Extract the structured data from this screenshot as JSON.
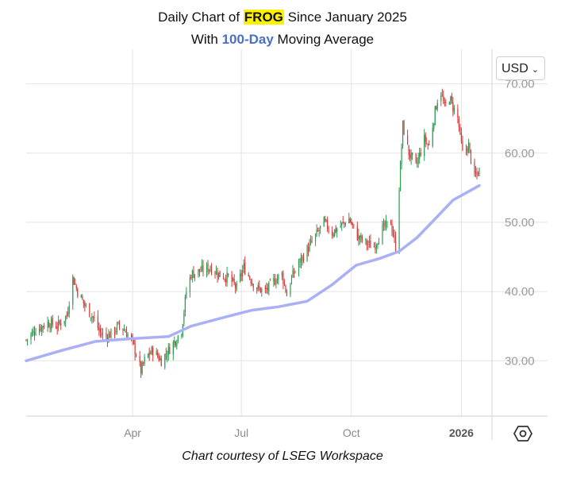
{
  "title": {
    "line1_prefix": "Daily Chart of ",
    "ticker": "FROG",
    "line1_suffix": " Since January 2025",
    "line2_prefix": "With ",
    "ma_label": "100-Day",
    "line2_suffix": " Moving Average"
  },
  "currency_selector": {
    "value": "USD",
    "icon": "chevron-down-icon"
  },
  "settings_icon": "hexagon-settings-icon",
  "credit": "Chart courtesy of LSEG Workspace",
  "colors": {
    "up": "#2e9e55",
    "down": "#d23c3c",
    "ma": "#a9b0f5",
    "grid": "#e3e3e3",
    "highlight": "#fff200",
    "ma_label": "#4a6fc7"
  },
  "chart_data": {
    "type": "candlestick",
    "ylim": [
      22,
      75
    ],
    "yticks": [
      30,
      40,
      50,
      60,
      70
    ],
    "ytick_labels": [
      "30.00",
      "40.00",
      "50.00",
      "60.00",
      "70.00"
    ],
    "xticks": [
      {
        "label": "Apr",
        "date": "2025-04-01"
      },
      {
        "label": "Jul",
        "date": "2025-07-01"
      },
      {
        "label": "Oct",
        "date": "2025-10-01"
      },
      {
        "label": "2026",
        "date": "2026-01-01",
        "bold": true
      }
    ],
    "xrange": [
      "2025-01-02",
      "2026-01-16"
    ],
    "price_series": {
      "name": "FROG",
      "path": [
        [
          "2025-01-02",
          33.0
        ],
        [
          "2025-01-10",
          34.5
        ],
        [
          "2025-01-20",
          35.5
        ],
        [
          "2025-01-28",
          35.0
        ],
        [
          "2025-02-05",
          36.5
        ],
        [
          "2025-02-10",
          42.0
        ],
        [
          "2025-02-14",
          40.0
        ],
        [
          "2025-02-20",
          38.0
        ],
        [
          "2025-02-28",
          36.0
        ],
        [
          "2025-03-05",
          34.0
        ],
        [
          "2025-03-10",
          33.5
        ],
        [
          "2025-03-15",
          34.0
        ],
        [
          "2025-03-20",
          35.0
        ],
        [
          "2025-03-25",
          34.5
        ],
        [
          "2025-03-31",
          33.0
        ],
        [
          "2025-04-04",
          31.0
        ],
        [
          "2025-04-08",
          28.5
        ],
        [
          "2025-04-12",
          30.5
        ],
        [
          "2025-04-18",
          31.5
        ],
        [
          "2025-04-25",
          30.0
        ],
        [
          "2025-05-01",
          31.5
        ],
        [
          "2025-05-07",
          33.0
        ],
        [
          "2025-05-12",
          34.5
        ],
        [
          "2025-05-16",
          40.0
        ],
        [
          "2025-05-20",
          42.5
        ],
        [
          "2025-05-28",
          43.0
        ],
        [
          "2025-06-05",
          43.5
        ],
        [
          "2025-06-12",
          42.5
        ],
        [
          "2025-06-20",
          42.0
        ],
        [
          "2025-06-27",
          40.5
        ],
        [
          "2025-07-03",
          43.5
        ],
        [
          "2025-07-08",
          42.0
        ],
        [
          "2025-07-14",
          40.5
        ],
        [
          "2025-07-21",
          40.0
        ],
        [
          "2025-07-28",
          41.5
        ],
        [
          "2025-08-04",
          42.5
        ],
        [
          "2025-08-08",
          39.5
        ],
        [
          "2025-08-12",
          42.0
        ],
        [
          "2025-08-18",
          44.0
        ],
        [
          "2025-08-25",
          46.0
        ],
        [
          "2025-09-01",
          48.0
        ],
        [
          "2025-09-08",
          50.0
        ],
        [
          "2025-09-15",
          48.5
        ],
        [
          "2025-09-22",
          49.5
        ],
        [
          "2025-09-29",
          50.5
        ],
        [
          "2025-10-06",
          48.0
        ],
        [
          "2025-10-13",
          47.0
        ],
        [
          "2025-10-20",
          46.5
        ],
        [
          "2025-10-27",
          49.0
        ],
        [
          "2025-11-03",
          50.0
        ],
        [
          "2025-11-07",
          46.5
        ],
        [
          "2025-11-11",
          58.0
        ],
        [
          "2025-11-13",
          64.0
        ],
        [
          "2025-11-18",
          60.0
        ],
        [
          "2025-11-24",
          58.0
        ],
        [
          "2025-12-01",
          62.0
        ],
        [
          "2025-12-05",
          61.0
        ],
        [
          "2025-12-10",
          66.0
        ],
        [
          "2025-12-14",
          69.5
        ],
        [
          "2025-12-18",
          66.5
        ],
        [
          "2025-12-22",
          68.0
        ],
        [
          "2025-12-29",
          65.0
        ],
        [
          "2026-01-02",
          60.0
        ],
        [
          "2026-01-07",
          61.0
        ],
        [
          "2026-01-12",
          56.5
        ],
        [
          "2026-01-16",
          57.5
        ]
      ]
    },
    "ma_series": {
      "name": "100-Day Moving Average",
      "points": [
        [
          "2025-01-02",
          30.0
        ],
        [
          "2025-02-01",
          31.5
        ],
        [
          "2025-03-01",
          32.8
        ],
        [
          "2025-04-01",
          33.2
        ],
        [
          "2025-05-01",
          33.5
        ],
        [
          "2025-05-20",
          35.0
        ],
        [
          "2025-06-15",
          36.2
        ],
        [
          "2025-07-10",
          37.3
        ],
        [
          "2025-08-01",
          37.8
        ],
        [
          "2025-08-25",
          38.6
        ],
        [
          "2025-09-15",
          41.0
        ],
        [
          "2025-10-05",
          43.8
        ],
        [
          "2025-10-25",
          44.8
        ],
        [
          "2025-11-10",
          45.8
        ],
        [
          "2025-11-25",
          47.8
        ],
        [
          "2025-12-10",
          50.5
        ],
        [
          "2025-12-25",
          53.2
        ],
        [
          "2026-01-16",
          55.3
        ]
      ]
    }
  }
}
